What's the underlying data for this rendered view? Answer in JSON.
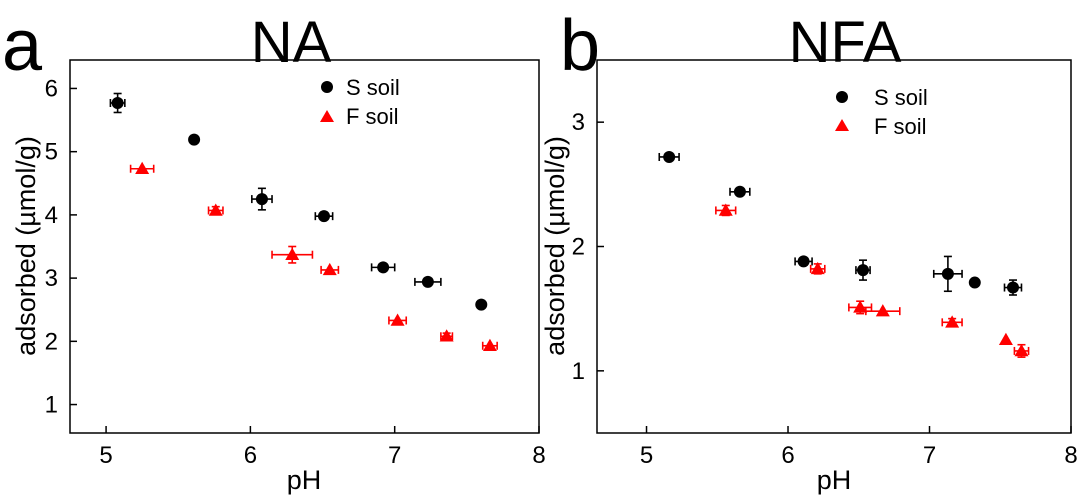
{
  "chart_data": [
    {
      "type": "scatter",
      "panel_letter": "a",
      "title": "NA",
      "xlabel": "pH",
      "ylabel": "adsorbed (µmol/g)",
      "xlim": [
        4.75,
        8.0
      ],
      "ylim": [
        0.55,
        6.45
      ],
      "xticks": [
        5,
        6,
        7,
        8
      ],
      "yticks": [
        1,
        2,
        3,
        4,
        5,
        6
      ],
      "legend_position": "top-right",
      "series": [
        {
          "name": "S soil",
          "color": "#000000",
          "marker": "circle",
          "points": [
            {
              "x": 5.08,
              "y": 5.77,
              "xerr": 0.05,
              "yerr": 0.15
            },
            {
              "x": 5.61,
              "y": 5.19,
              "xerr": 0.0,
              "yerr": 0.0
            },
            {
              "x": 6.08,
              "y": 4.25,
              "xerr": 0.07,
              "yerr": 0.17
            },
            {
              "x": 6.51,
              "y": 3.98,
              "xerr": 0.06,
              "yerr": 0.0
            },
            {
              "x": 6.92,
              "y": 3.17,
              "xerr": 0.08,
              "yerr": 0.0
            },
            {
              "x": 7.23,
              "y": 2.94,
              "xerr": 0.09,
              "yerr": 0.0
            },
            {
              "x": 7.6,
              "y": 2.58,
              "xerr": 0.0,
              "yerr": 0.0
            }
          ]
        },
        {
          "name": "F soil",
          "color": "#ff0000",
          "marker": "triangle",
          "points": [
            {
              "x": 5.25,
              "y": 4.73,
              "xerr": 0.08,
              "yerr": 0.0
            },
            {
              "x": 5.76,
              "y": 4.07,
              "xerr": 0.05,
              "yerr": 0.06
            },
            {
              "x": 6.29,
              "y": 3.37,
              "xerr": 0.14,
              "yerr": 0.13
            },
            {
              "x": 6.55,
              "y": 3.13,
              "xerr": 0.06,
              "yerr": 0.0
            },
            {
              "x": 7.02,
              "y": 2.33,
              "xerr": 0.06,
              "yerr": 0.0
            },
            {
              "x": 7.36,
              "y": 2.08,
              "xerr": 0.04,
              "yerr": 0.05
            },
            {
              "x": 7.66,
              "y": 1.93,
              "xerr": 0.05,
              "yerr": 0.0
            }
          ]
        }
      ]
    },
    {
      "type": "scatter",
      "panel_letter": "b",
      "title": "NFA",
      "xlabel": "pH",
      "ylabel": "adsorbed (µmol/g)",
      "xlim": [
        4.65,
        8.0
      ],
      "ylim": [
        0.5,
        3.5
      ],
      "xticks": [
        5,
        6,
        7,
        8
      ],
      "yticks": [
        1,
        2,
        3
      ],
      "legend_position": "top-right",
      "series": [
        {
          "name": "S soil",
          "color": "#000000",
          "marker": "circle",
          "points": [
            {
              "x": 5.16,
              "y": 2.72,
              "xerr": 0.07,
              "yerr": 0.0
            },
            {
              "x": 5.66,
              "y": 2.44,
              "xerr": 0.07,
              "yerr": 0.0
            },
            {
              "x": 6.11,
              "y": 1.88,
              "xerr": 0.06,
              "yerr": 0.0
            },
            {
              "x": 6.53,
              "y": 1.81,
              "xerr": 0.05,
              "yerr": 0.08
            },
            {
              "x": 7.13,
              "y": 1.78,
              "xerr": 0.1,
              "yerr": 0.14
            },
            {
              "x": 7.32,
              "y": 1.71,
              "xerr": 0.0,
              "yerr": 0.0
            },
            {
              "x": 7.59,
              "y": 1.67,
              "xerr": 0.06,
              "yerr": 0.06
            }
          ]
        },
        {
          "name": "F soil",
          "color": "#ff0000",
          "marker": "triangle",
          "points": [
            {
              "x": 5.56,
              "y": 2.29,
              "xerr": 0.07,
              "yerr": 0.04
            },
            {
              "x": 6.21,
              "y": 1.82,
              "xerr": 0.05,
              "yerr": 0.04
            },
            {
              "x": 6.51,
              "y": 1.51,
              "xerr": 0.08,
              "yerr": 0.05
            },
            {
              "x": 6.67,
              "y": 1.48,
              "xerr": 0.12,
              "yerr": 0.0
            },
            {
              "x": 7.16,
              "y": 1.39,
              "xerr": 0.07,
              "yerr": 0.03
            },
            {
              "x": 7.54,
              "y": 1.25,
              "xerr": 0.0,
              "yerr": 0.0
            },
            {
              "x": 7.65,
              "y": 1.16,
              "xerr": 0.05,
              "yerr": 0.05
            }
          ]
        }
      ]
    }
  ]
}
